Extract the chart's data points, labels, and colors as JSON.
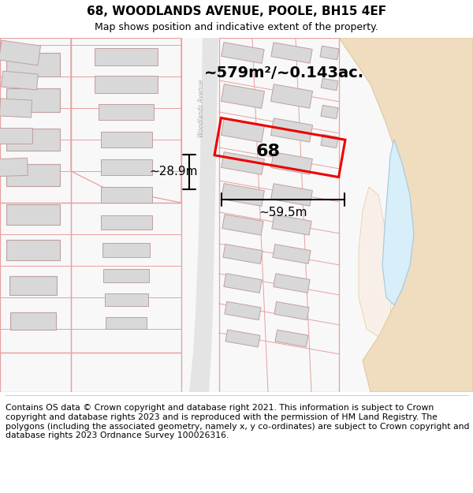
{
  "title": "68, WOODLANDS AVENUE, POOLE, BH15 4EF",
  "subtitle": "Map shows position and indicative extent of the property.",
  "footer_lines": [
    "Contains OS data © Crown copyright and database right 2021. This information is subject to Crown copyright and database rights 2023 and is reproduced with the permission of",
    "HM Land Registry. The polygons (including the associated geometry, namely x, y co-ordinates) are subject to Crown copyright and database rights 2023 Ordnance Survey",
    "100026316."
  ],
  "area_text": "~579m²/~0.143ac.",
  "width_text": "~59.5m",
  "height_text": "~28.9m",
  "plot_label": "68",
  "bg_color": "#ffffff",
  "map_bg": "#f8f8f8",
  "road_color": "#e0e0e0",
  "plot_border_color": "#ee0000",
  "building_fill": "#d8d8d8",
  "building_edge": "#c0a0a0",
  "pink_line": "#e8a0a0",
  "tan_fill": "#f0ddc0",
  "tan_edge": "#e0c8a0",
  "blue_fill": "#d8eef8",
  "blue_edge": "#a0c8e0",
  "road_label_color": "#aaaaaa",
  "title_fontsize": 11,
  "subtitle_fontsize": 9,
  "footer_fontsize": 7.8,
  "annotation_fontsize": 11,
  "area_fontsize": 14
}
